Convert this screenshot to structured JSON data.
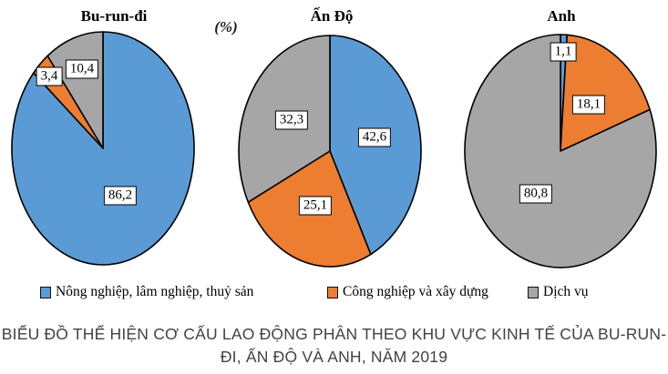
{
  "chart_data": {
    "type": "pie",
    "unit": "(%)",
    "year": "2019",
    "legend_position": "bottom",
    "series_labels": [
      "Nông nghiệp, lâm nghiệp, thuỷ sản",
      "Công nghiệp và xây dựng",
      "Dịch vụ"
    ],
    "colors": [
      "#5B9BD5",
      "#ED7D31",
      "#A6A6A6"
    ],
    "pies": [
      {
        "title": "Bu-run-đi",
        "values": [
          86.2,
          3.4,
          10.4
        ]
      },
      {
        "title": "Ấn Độ",
        "values": [
          42.6,
          25.1,
          32.3
        ]
      },
      {
        "title": "Anh",
        "values": [
          1.1,
          18.1,
          80.8
        ]
      }
    ]
  },
  "caption": {
    "line1": "BIỂU ĐỒ THỂ HIỆN CƠ CẤU LAO ĐỘNG PHÂN THEO KHU VỰC KINH TẾ CỦA BU-RUN-",
    "line2": "ĐI, ẤN ĐỘ VÀ ANH, NĂM 2019"
  }
}
